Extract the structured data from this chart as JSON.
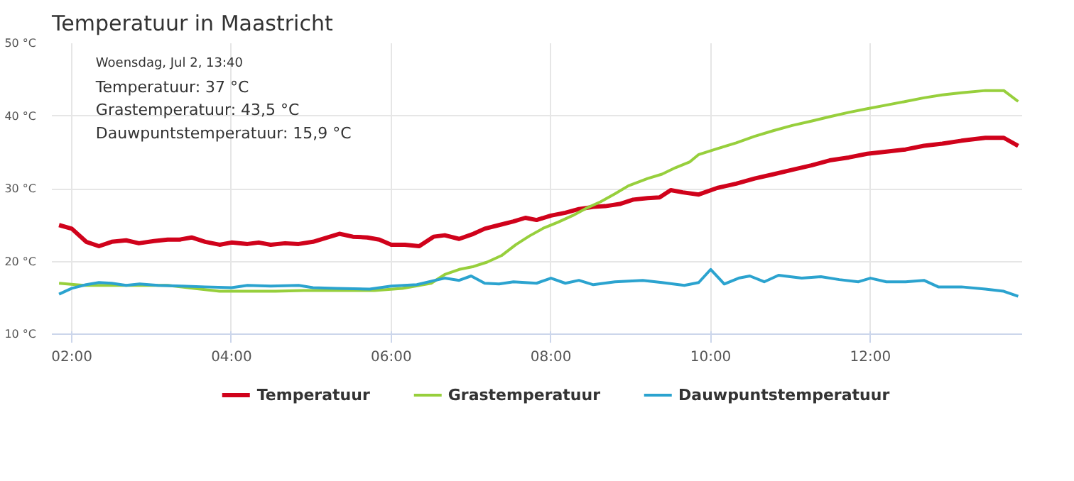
{
  "chart_data": {
    "type": "line",
    "title": "Temperatuur in Maastricht",
    "xlim": [
      1.75,
      13.9
    ],
    "xticks": [
      {
        "value": 2,
        "label": "02:00"
      },
      {
        "value": 4,
        "label": "04:00"
      },
      {
        "value": 6,
        "label": "06:00"
      },
      {
        "value": 8,
        "label": "08:00"
      },
      {
        "value": 10,
        "label": "10:00"
      },
      {
        "value": 12,
        "label": "12:00"
      }
    ],
    "ylim": [
      10,
      50
    ],
    "yticks": [
      {
        "value": 10,
        "label": "10 °C"
      },
      {
        "value": 20,
        "label": "20 °C"
      },
      {
        "value": 30,
        "label": "30 °C"
      },
      {
        "value": 40,
        "label": "40 °C"
      },
      {
        "value": 50,
        "label": "50 °C"
      }
    ],
    "grid": true,
    "legend": "bottom",
    "marker": "none",
    "line_style": "solid",
    "annotations": [
      "Woensdag, Jul 2, 13:40",
      "Temperatuur: 37 °C",
      "Grastemperatuur: 43,5 °C",
      "Dauwpuntstemperatuur: 15,9 °C"
    ],
    "series": [
      {
        "name": "Temperatuur",
        "color": "#d0021b",
        "x": [
          1.84,
          2.0,
          2.18,
          2.34,
          2.5,
          2.68,
          2.84,
          3.03,
          3.2,
          3.35,
          3.5,
          3.67,
          3.85,
          4.0,
          4.2,
          4.34,
          4.49,
          4.67,
          4.84,
          5.02,
          5.35,
          5.52,
          5.7,
          5.85,
          6.0,
          6.17,
          6.35,
          6.53,
          6.67,
          6.85,
          7.03,
          7.17,
          7.35,
          7.53,
          7.68,
          7.82,
          8.0,
          8.18,
          8.35,
          8.53,
          8.68,
          8.86,
          9.03,
          9.21,
          9.36,
          9.5,
          9.65,
          9.85,
          10.08,
          10.32,
          10.55,
          10.79,
          11.02,
          11.26,
          11.49,
          11.73,
          11.96,
          12.2,
          12.44,
          12.67,
          12.9,
          13.14,
          13.44,
          13.67,
          13.85
        ],
        "values": [
          25.0,
          24.5,
          22.7,
          22.1,
          22.7,
          22.9,
          22.5,
          22.8,
          23.0,
          23.0,
          23.3,
          22.7,
          22.3,
          22.6,
          22.4,
          22.6,
          22.3,
          22.5,
          22.4,
          22.7,
          23.8,
          23.4,
          23.3,
          23.0,
          22.3,
          22.3,
          22.1,
          23.4,
          23.6,
          23.1,
          23.8,
          24.5,
          25.0,
          25.5,
          26.0,
          25.7,
          26.3,
          26.7,
          27.2,
          27.5,
          27.6,
          27.9,
          28.5,
          28.7,
          28.8,
          29.8,
          29.5,
          29.2,
          30.1,
          30.7,
          31.4,
          32.0,
          32.6,
          33.2,
          33.9,
          34.3,
          34.8,
          35.1,
          35.4,
          35.9,
          36.2,
          36.6,
          37.0,
          37.0,
          35.9
        ]
      },
      {
        "name": "Grastemperatuur",
        "color": "#97cf3c",
        "x": [
          1.84,
          2.15,
          2.5,
          2.85,
          3.2,
          3.53,
          3.85,
          4.2,
          4.55,
          4.9,
          5.31,
          5.79,
          6.14,
          6.5,
          6.67,
          6.85,
          7.03,
          7.2,
          7.38,
          7.56,
          7.73,
          7.91,
          8.09,
          8.27,
          8.44,
          8.62,
          8.8,
          8.97,
          9.21,
          9.39,
          9.56,
          9.74,
          9.85,
          10.08,
          10.32,
          10.55,
          10.79,
          11.02,
          11.26,
          11.49,
          11.73,
          11.96,
          12.2,
          12.44,
          12.67,
          12.9,
          13.14,
          13.44,
          13.67,
          13.85
        ],
        "values": [
          17.0,
          16.7,
          16.7,
          16.7,
          16.7,
          16.3,
          15.9,
          15.9,
          15.9,
          16.0,
          16.0,
          16.0,
          16.3,
          17.0,
          18.2,
          18.9,
          19.3,
          19.9,
          20.8,
          22.3,
          23.5,
          24.6,
          25.4,
          26.3,
          27.3,
          28.2,
          29.3,
          30.4,
          31.4,
          32.0,
          32.9,
          33.7,
          34.7,
          35.5,
          36.3,
          37.2,
          38.0,
          38.7,
          39.3,
          39.9,
          40.5,
          41.0,
          41.5,
          42.0,
          42.5,
          42.9,
          43.2,
          43.5,
          43.5,
          42.0
        ]
      },
      {
        "name": "Dauwpuntstemperatuur",
        "color": "#2ba3cf",
        "x": [
          1.84,
          2.0,
          2.18,
          2.34,
          2.5,
          2.68,
          2.85,
          3.08,
          3.38,
          3.67,
          4.0,
          4.2,
          4.49,
          4.84,
          5.02,
          5.31,
          5.73,
          6.0,
          6.32,
          6.55,
          6.67,
          6.85,
          7.0,
          7.17,
          7.35,
          7.53,
          7.82,
          8.0,
          8.18,
          8.35,
          8.53,
          8.8,
          9.15,
          9.39,
          9.67,
          9.85,
          10.0,
          10.17,
          10.35,
          10.49,
          10.67,
          10.85,
          11.14,
          11.38,
          11.61,
          11.85,
          12.0,
          12.2,
          12.44,
          12.67,
          12.85,
          13.14,
          13.44,
          13.67,
          13.85
        ],
        "values": [
          15.5,
          16.3,
          16.8,
          17.1,
          17.0,
          16.7,
          16.9,
          16.7,
          16.6,
          16.5,
          16.4,
          16.7,
          16.6,
          16.7,
          16.4,
          16.3,
          16.2,
          16.6,
          16.8,
          17.4,
          17.7,
          17.4,
          18.0,
          17.0,
          16.9,
          17.2,
          17.0,
          17.7,
          17.0,
          17.4,
          16.8,
          17.2,
          17.4,
          17.1,
          16.7,
          17.1,
          18.9,
          16.9,
          17.7,
          18.0,
          17.2,
          18.1,
          17.7,
          17.9,
          17.5,
          17.2,
          17.7,
          17.2,
          17.2,
          17.4,
          16.5,
          16.5,
          16.2,
          15.9,
          15.2
        ]
      }
    ]
  }
}
